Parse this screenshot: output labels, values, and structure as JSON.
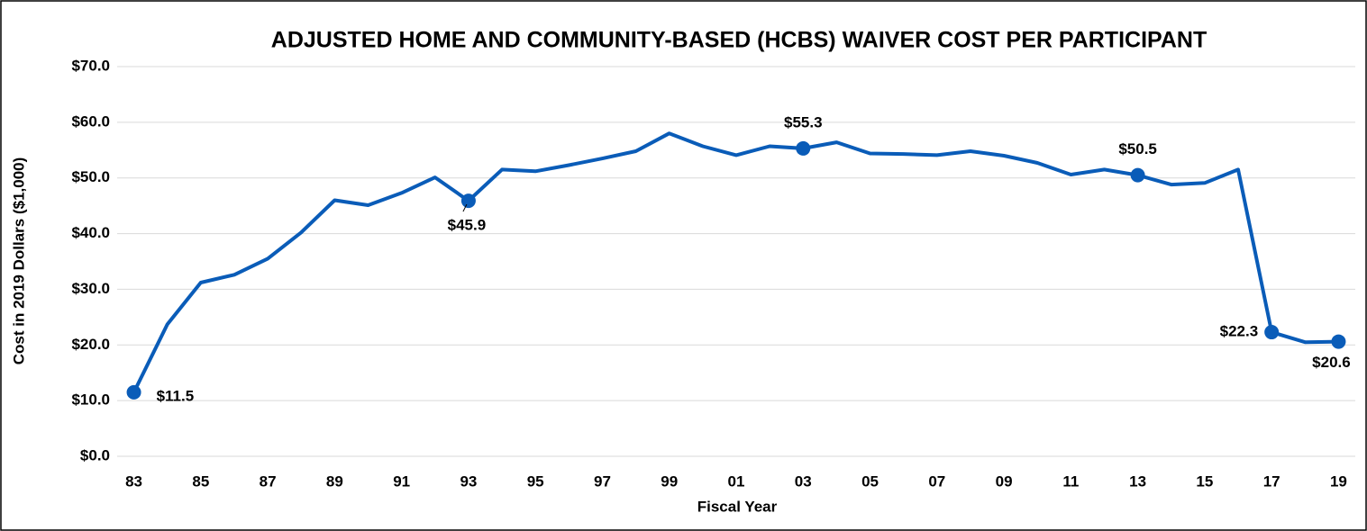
{
  "chart_data": {
    "type": "line",
    "title": "ADJUSTED HOME AND COMMUNITY-BASED (HCBS) WAIVER COST PER PARTICIPANT",
    "x_label": "Fiscal Year",
    "y_label": "Cost in 2019 Dollars ($1,000)",
    "categories": [
      "83",
      null,
      "85",
      null,
      "87",
      null,
      "89",
      null,
      "91",
      null,
      "93",
      null,
      "95",
      null,
      "97",
      null,
      "99",
      null,
      "01",
      null,
      "03",
      null,
      "05",
      null,
      "07",
      null,
      "09",
      null,
      "11",
      null,
      "13",
      null,
      "15",
      null,
      "17",
      null,
      "19"
    ],
    "series": [
      {
        "name": "Cost per participant",
        "color": "#0a5cb8",
        "values": [
          11.5,
          23.7,
          31.2,
          32.6,
          35.5,
          40.2,
          46.0,
          45.1,
          47.3,
          50.1,
          45.9,
          51.5,
          51.2,
          52.3,
          53.5,
          54.8,
          58.0,
          55.7,
          54.1,
          55.7,
          55.3,
          56.4,
          54.4,
          54.3,
          54.1,
          54.8,
          54.0,
          52.7,
          50.6,
          51.5,
          50.5,
          48.8,
          49.1,
          51.5,
          22.3,
          20.5,
          20.6
        ],
        "value_labels": [
          "$11.5",
          null,
          null,
          null,
          null,
          null,
          null,
          null,
          null,
          null,
          "$45.9",
          null,
          null,
          null,
          null,
          null,
          null,
          null,
          null,
          null,
          "$55.3",
          null,
          null,
          null,
          null,
          null,
          null,
          null,
          null,
          null,
          "$50.5",
          null,
          null,
          null,
          "$22.3",
          null,
          "$20.6"
        ]
      }
    ],
    "ylim": [
      0,
      70
    ],
    "yticks": [
      {
        "value": 0,
        "label": "$0.0"
      },
      {
        "value": 10,
        "label": "$10.0"
      },
      {
        "value": 20,
        "label": "$20.0"
      },
      {
        "value": 30,
        "label": "$30.0"
      },
      {
        "value": 40,
        "label": "$40.0"
      },
      {
        "value": 50,
        "label": "$50.0"
      },
      {
        "value": 60,
        "label": "$60.0"
      },
      {
        "value": 70,
        "label": "$70.0"
      }
    ],
    "grid": true
  }
}
